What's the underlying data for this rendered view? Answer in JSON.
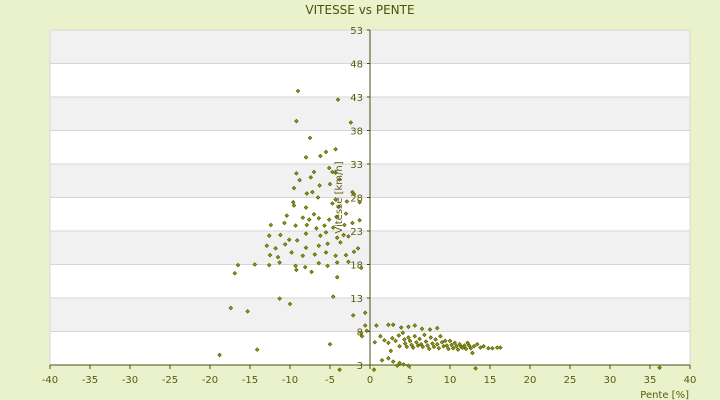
{
  "chart_data": {
    "type": "scatter",
    "title": "VITESSE vs PENTE",
    "xlabel": "Pente [%]",
    "ylabel": "Vitesse [km/h]",
    "xlim": [
      -40,
      40
    ],
    "ylim": [
      3,
      53
    ],
    "xticks": [
      -40,
      -35,
      -30,
      -25,
      -20,
      -15,
      -10,
      -5,
      0,
      5,
      10,
      15,
      20,
      25,
      30,
      35,
      40
    ],
    "yticks": [
      3,
      8,
      13,
      18,
      23,
      28,
      33,
      38,
      43,
      48,
      53
    ],
    "grid": true,
    "legend": "none",
    "colors": {
      "background": "#eaf2cc",
      "plot": "#ffffff",
      "band": "#f1f1f1",
      "marker_fill": "#8aa000",
      "marker_edge": "#515100",
      "axis": "#4d4d10"
    },
    "series": [
      {
        "points": [
          [
            -9,
            43.9
          ],
          [
            -4,
            42.6
          ],
          [
            -9.2,
            39.4
          ],
          [
            -2.4,
            39.2
          ],
          [
            -7.5,
            36.9
          ],
          [
            -8,
            34
          ],
          [
            -6.2,
            34.2
          ],
          [
            -4.3,
            35.2
          ],
          [
            -5.5,
            34.8
          ],
          [
            -5.1,
            32.4
          ],
          [
            -4.7,
            31.8
          ],
          [
            -9.2,
            31.6
          ],
          [
            -7,
            31.8
          ],
          [
            -4.3,
            31.7
          ],
          [
            -7.4,
            31
          ],
          [
            -5,
            30
          ],
          [
            -8.8,
            30.6
          ],
          [
            -3.8,
            30.7
          ],
          [
            -9.5,
            29.4
          ],
          [
            -6.3,
            29.8
          ],
          [
            -7.9,
            28.6
          ],
          [
            -6.5,
            28
          ],
          [
            -7.2,
            28.8
          ],
          [
            -2.2,
            28.8
          ],
          [
            -2,
            28.5
          ],
          [
            -9.6,
            27.3
          ],
          [
            -4.3,
            27.7
          ],
          [
            -4.7,
            27.1
          ],
          [
            -2.9,
            27.4
          ],
          [
            -1.3,
            27.3
          ],
          [
            -3.9,
            26.6
          ],
          [
            -9.5,
            26.8
          ],
          [
            -8,
            26.5
          ],
          [
            -10.4,
            25.3
          ],
          [
            -8.4,
            25
          ],
          [
            -7.6,
            24.7
          ],
          [
            -6.4,
            24.9
          ],
          [
            -5.1,
            24.7
          ],
          [
            -4.2,
            25.1
          ],
          [
            -3,
            25.6
          ],
          [
            -7,
            25.5
          ],
          [
            -1.3,
            24.6
          ],
          [
            -12.4,
            23.9
          ],
          [
            -10.7,
            24.2
          ],
          [
            -9.3,
            23.8
          ],
          [
            -7.9,
            23.9
          ],
          [
            -6.7,
            23.4
          ],
          [
            -5.7,
            23.8
          ],
          [
            -4.6,
            23.5
          ],
          [
            -3.2,
            23.9
          ],
          [
            -2.2,
            24.2
          ],
          [
            -12.6,
            22.3
          ],
          [
            -11.2,
            22.4
          ],
          [
            -10.1,
            21.7
          ],
          [
            -8,
            22.6
          ],
          [
            -6.2,
            22.3
          ],
          [
            -5.5,
            22.8
          ],
          [
            -4.1,
            22
          ],
          [
            -2.7,
            22.2
          ],
          [
            -3.3,
            22.4
          ],
          [
            -12.9,
            20.8
          ],
          [
            -11.8,
            20.4
          ],
          [
            -10.6,
            21
          ],
          [
            -9.1,
            21.6
          ],
          [
            -8,
            20.5
          ],
          [
            -6.4,
            20.8
          ],
          [
            -5.3,
            21.1
          ],
          [
            -3.7,
            21.3
          ],
          [
            -1.5,
            20.4
          ],
          [
            -12.5,
            19.4
          ],
          [
            -11.5,
            19.1
          ],
          [
            -9.8,
            19.8
          ],
          [
            -8.4,
            19.3
          ],
          [
            -6.9,
            19.5
          ],
          [
            -5.5,
            19.8
          ],
          [
            -4.3,
            19.3
          ],
          [
            -3,
            19.4
          ],
          [
            -2,
            19.9
          ],
          [
            -14.4,
            18
          ],
          [
            -12.6,
            17.9
          ],
          [
            -11.3,
            18.3
          ],
          [
            -9.3,
            17.8
          ],
          [
            -8.1,
            17.6
          ],
          [
            -6.4,
            18.2
          ],
          [
            -5.3,
            17.8
          ],
          [
            -4.1,
            18.3
          ],
          [
            -2.7,
            18.4
          ],
          [
            -1.1,
            17.5
          ],
          [
            -16.5,
            17.9
          ],
          [
            -16.9,
            16.7
          ],
          [
            -9.2,
            17.2
          ],
          [
            -7.3,
            16.9
          ],
          [
            -4.1,
            16.1
          ],
          [
            -11.3,
            12.9
          ],
          [
            -4.6,
            13.2
          ],
          [
            -10,
            12.1
          ],
          [
            -17.4,
            11.5
          ],
          [
            -15.3,
            11
          ],
          [
            -0.6,
            10.8
          ],
          [
            -2.1,
            10.4
          ],
          [
            -0.6,
            8.9
          ],
          [
            -0.4,
            8.1
          ],
          [
            -1.1,
            7.8
          ],
          [
            -1,
            7.3
          ],
          [
            -5,
            6.1
          ],
          [
            -14.1,
            5.3
          ],
          [
            -18.8,
            4.5
          ],
          [
            -3.8,
            2.3
          ],
          [
            0.5,
            2.3
          ],
          [
            0.8,
            8.9
          ],
          [
            2.3,
            9
          ],
          [
            2.9,
            9
          ],
          [
            3.9,
            8.6
          ],
          [
            4.8,
            8.7
          ],
          [
            5.6,
            8.9
          ],
          [
            6.5,
            8.4
          ],
          [
            7.5,
            8.3
          ],
          [
            8.4,
            8.5
          ],
          [
            0.6,
            6.4
          ],
          [
            1.3,
            7.3
          ],
          [
            1.8,
            6.7
          ],
          [
            2.3,
            6.3
          ],
          [
            2.8,
            7
          ],
          [
            3.2,
            6.6
          ],
          [
            3.7,
            5.8
          ],
          [
            3.6,
            7.4
          ],
          [
            4.1,
            7.8
          ],
          [
            4.3,
            6.8
          ],
          [
            4.4,
            6.2
          ],
          [
            4.6,
            5.7
          ],
          [
            4.8,
            7.1
          ],
          [
            5,
            6.6
          ],
          [
            5.2,
            6
          ],
          [
            5.4,
            5.6
          ],
          [
            5.6,
            7.3
          ],
          [
            5.8,
            6.4
          ],
          [
            6,
            5.9
          ],
          [
            6.2,
            6.9
          ],
          [
            6.4,
            6.1
          ],
          [
            6.6,
            5.7
          ],
          [
            6.8,
            7.5
          ],
          [
            7,
            6.5
          ],
          [
            7.2,
            5.9
          ],
          [
            7.4,
            5.4
          ],
          [
            7.6,
            7.1
          ],
          [
            7.8,
            6.2
          ],
          [
            8,
            5.7
          ],
          [
            8.2,
            6.8
          ],
          [
            8.4,
            6.1
          ],
          [
            8.6,
            5.5
          ],
          [
            8.8,
            7.3
          ],
          [
            9,
            6.4
          ],
          [
            9.2,
            5.8
          ],
          [
            9.4,
            6.6
          ],
          [
            9.6,
            5.9
          ],
          [
            9.8,
            5.4
          ],
          [
            10,
            6.6
          ],
          [
            10.2,
            6
          ],
          [
            10.4,
            5.5
          ],
          [
            10.6,
            6.3
          ],
          [
            10.8,
            5.8
          ],
          [
            11,
            5.3
          ],
          [
            11.2,
            6.1
          ],
          [
            11.4,
            5.7
          ],
          [
            11.6,
            5.6
          ],
          [
            11.8,
            5.9
          ],
          [
            12,
            5.4
          ],
          [
            12.2,
            6.3
          ],
          [
            12.4,
            5.9
          ],
          [
            12.6,
            5.5
          ],
          [
            13,
            5.8
          ],
          [
            13.4,
            6.1
          ],
          [
            13.8,
            5.6
          ],
          [
            14.2,
            5.8
          ],
          [
            14.8,
            5.5
          ],
          [
            15.3,
            5.5
          ],
          [
            15.9,
            5.6
          ],
          [
            16.3,
            5.6
          ],
          [
            2.6,
            5.1
          ],
          [
            2.3,
            4
          ],
          [
            2.9,
            3.5
          ],
          [
            3.4,
            2.9
          ],
          [
            3.7,
            3.3
          ],
          [
            4.2,
            3.1
          ],
          [
            4.8,
            2.9
          ],
          [
            1.5,
            3.7
          ],
          [
            12.8,
            4.8
          ],
          [
            13.2,
            2.5
          ],
          [
            36.2,
            2.6
          ]
        ]
      }
    ]
  }
}
